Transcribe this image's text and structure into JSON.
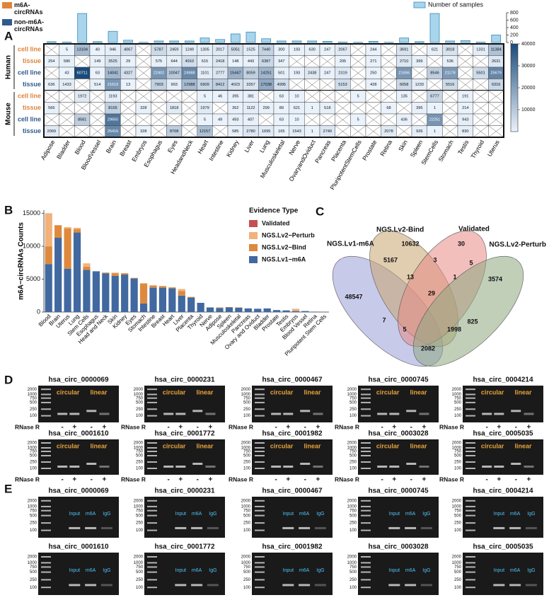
{
  "panel_labels": [
    "A",
    "B",
    "C",
    "D",
    "E"
  ],
  "chart_data": [
    {
      "type": "heatmap",
      "categories": [
        "Adipose",
        "Bladder",
        "Blood",
        "BloodVessel",
        "Brain",
        "Breast",
        "Embryos",
        "Esophagus",
        "Eyes",
        "HeadandNeck",
        "Heart",
        "Intestine",
        "Kidney",
        "Liver",
        "Lung",
        "Musculoskeletal",
        "Nerve",
        "OvaryandOviduct",
        "Pancreas",
        "Placenta",
        "PluripotentStemCells",
        "Prostate",
        "Retina",
        "Skin",
        "Spleen",
        "StemCells",
        "Stomach",
        "Testis",
        "Thyroid",
        "Uterus"
      ],
      "series": [
        {
          "name": "m6A-circRNAs",
          "color": "#e0843a"
        },
        {
          "name": "non-m6A-circRNAs",
          "color": "#2f5b8c"
        }
      ],
      "groups": [
        {
          "name": "Human",
          "rows": [
            {
              "label": "cell line",
              "values": [
                null,
                5,
                13104,
                40,
                946,
                4067,
                null,
                5787,
                2459,
                1249,
                1305,
                2017,
                5051,
                1525,
                7440,
                300,
                193,
                630,
                247,
                2067,
                null,
                244,
                null,
                3691,
                null,
                621,
                3918,
                null,
                1331,
                11384
              ]
            },
            {
              "label": "tissue",
              "values": [
                254,
                580,
                null,
                149,
                3525,
                29,
                null,
                575,
                644,
                4910,
                615,
                2418,
                148,
                443,
                6387,
                347,
                null,
                null,
                null,
                205,
                null,
                271,
                null,
                2710,
                399,
                null,
                536,
                null,
                null,
                2631
              ]
            },
            {
              "label": "cell line",
              "values": [
                null,
                43,
                60711,
                63,
                14041,
                4327,
                null,
                22402,
                10047,
                24988,
                1101,
                2777,
                15447,
                8059,
                14251,
                501,
                193,
                2438,
                247,
                2319,
                null,
                250,
                null,
                21656,
                null,
                8546,
                21178,
                null,
                5501,
                25679
              ]
            },
            {
              "label": "tissue",
              "values": [
                636,
                1433,
                null,
                514,
                21619,
                13,
                null,
                7903,
                993,
                12988,
                6909,
                8412,
                4023,
                3357,
                17038,
                4995,
                null,
                null,
                null,
                5153,
                null,
                428,
                null,
                6058,
                1233,
                null,
                5516,
                null,
                null,
                6316
              ]
            }
          ]
        },
        {
          "name": "Mouse",
          "rows": [
            {
              "label": "cell line",
              "values": [
                null,
                null,
                1972,
                null,
                1193,
                null,
                null,
                null,
                null,
                null,
                5,
                46,
                395,
                381,
                null,
                63,
                10,
                null,
                null,
                null,
                5,
                null,
                null,
                135,
                null,
                6777,
                null,
                191,
                null,
                null
              ]
            },
            {
              "label": "tissue",
              "values": [
                566,
                null,
                null,
                null,
                8155,
                null,
                328,
                null,
                1818,
                null,
                1979,
                null,
                352,
                1122,
                299,
                89,
                621,
                1,
                518,
                null,
                null,
                null,
                68,
                null,
                395,
                1,
                null,
                214,
                null,
                null
              ]
            },
            {
              "label": "cell line",
              "values": [
                null,
                null,
                8581,
                null,
                29650,
                null,
                null,
                null,
                null,
                null,
                5,
                49,
                493,
                407,
                null,
                63,
                10,
                null,
                null,
                null,
                5,
                null,
                null,
                436,
                null,
                22251,
                null,
                943,
                null,
                null
              ]
            },
            {
              "label": "tissue",
              "values": [
                2069,
                null,
                null,
                null,
                25416,
                null,
                328,
                null,
                8708,
                null,
                12157,
                null,
                585,
                2780,
                1695,
                165,
                1543,
                1,
                2749,
                null,
                null,
                null,
                2078,
                null,
                926,
                1,
                null,
                830,
                null,
                null
              ]
            }
          ]
        }
      ],
      "clim": [
        0,
        40000
      ],
      "cticks": [
        10000,
        20000,
        30000,
        40000
      ],
      "samples": {
        "name": "Number of samples",
        "color": "#a8d4ec",
        "values": [
          20,
          10,
          780,
          20,
          300,
          60,
          5,
          40,
          40,
          40,
          120,
          80,
          230,
          280,
          100,
          40,
          40,
          40,
          30,
          10,
          5,
          30,
          5,
          120,
          20,
          780,
          40,
          50,
          10,
          200
        ],
        "ylim": [
          0,
          800
        ],
        "yticks": [
          0,
          200,
          400,
          600,
          800
        ]
      }
    },
    {
      "type": "bar",
      "stacked": true,
      "ylabel": "m6A−circRNAs Counts",
      "legend_title": "Evidence Type",
      "categories": [
        "Blood",
        "Brain",
        "Uterus",
        "Lung",
        "Stem Cells",
        "Esophagus",
        "Head and Neck",
        "Skin",
        "Kidney",
        "Eyes",
        "Stomach",
        "Intestine",
        "Breast",
        "Heart",
        "Liver",
        "Placenta",
        "Thyroid",
        "Nerve",
        "Adipose",
        "Spleen",
        "Musculoskeletal",
        "Pancreas",
        "Ovary and Oviduct",
        "Bladder",
        "Prostate",
        "Testis",
        "Embryos",
        "Blood Vessel",
        "Retina",
        "Pluripotent Stem Cells"
      ],
      "series": [
        {
          "name": "Validated",
          "color": "#c44e52",
          "values": [
            20,
            10,
            10,
            10,
            5,
            0,
            0,
            0,
            0,
            0,
            0,
            0,
            0,
            0,
            0,
            0,
            0,
            0,
            0,
            0,
            0,
            0,
            0,
            0,
            0,
            0,
            0,
            0,
            0,
            0
          ]
        },
        {
          "name": "NGS.Lv2−Perturb",
          "color": "#f2b27a",
          "values": [
            5000,
            0,
            200,
            200,
            500,
            0,
            0,
            100,
            0,
            0,
            100,
            100,
            0,
            0,
            300,
            0,
            0,
            0,
            0,
            0,
            0,
            0,
            0,
            0,
            0,
            0,
            350,
            0,
            0,
            0
          ]
        },
        {
          "name": "NGS.Lv2−Bind",
          "color": "#dd8a3e",
          "values": [
            2700,
            1900,
            6100,
            500,
            500,
            0,
            100,
            400,
            200,
            100,
            3000,
            300,
            250,
            150,
            700,
            100,
            0,
            0,
            100,
            50,
            50,
            0,
            0,
            0,
            0,
            0,
            0,
            0,
            0,
            0
          ]
        },
        {
          "name": "NGS.Lv1−m6A",
          "color": "#4169a0",
          "values": [
            7300,
            11300,
            6600,
            12100,
            6400,
            6200,
            5900,
            5500,
            5700,
            5100,
            1300,
            3700,
            3700,
            3600,
            2500,
            2200,
            1400,
            700,
            600,
            700,
            650,
            550,
            500,
            550,
            300,
            250,
            150,
            150,
            60,
            20
          ]
        }
      ],
      "ylim": [
        0,
        15500
      ],
      "yticks": [
        0,
        5000,
        10000,
        15000
      ]
    },
    {
      "type": "venn",
      "sets": [
        {
          "name": "NGS.Lv1-m6A",
          "color": "#9b9ed8"
        },
        {
          "name": "NGS.Lv2-Bind",
          "color": "#c9a46e"
        },
        {
          "name": "Validated",
          "color": "#e88a85"
        },
        {
          "name": "NGS.Lv2-Perturb",
          "color": "#8ea77f"
        }
      ],
      "regions": [
        48547,
        10632,
        30,
        3574,
        5167,
        3,
        5,
        13,
        1,
        7,
        29,
        825,
        5,
        1998,
        2082
      ]
    }
  ],
  "gel_rnase": {
    "marker_sizes": [
      2000,
      1000,
      750,
      500,
      250,
      100
    ],
    "circular": "circular",
    "linear": "linear",
    "treatment": "RNase R",
    "signs": [
      "-",
      "+",
      "-",
      "+"
    ],
    "samples": [
      "hsa_circ_0000069",
      "hsa_circ_0000231",
      "hsa_circ_0000467",
      "hsa_circ_0000745",
      "hsa_circ_0004214",
      "hsa_circ_0001610",
      "hsa_circ_0001772",
      "hsa_circ_0001982",
      "hsa_circ_0003028",
      "hsa_circ_0005035"
    ]
  },
  "gel_merip": {
    "marker_sizes": [
      2000,
      1000,
      750,
      500,
      250,
      100
    ],
    "lanes": [
      "Input",
      "m6A",
      "IgG"
    ],
    "samples": [
      "hsa_circ_0000069",
      "hsa_circ_0000231",
      "hsa_circ_0000467",
      "hsa_circ_0000745",
      "hsa_circ_0004214",
      "hsa_circ_0001610",
      "hsa_circ_0001772",
      "hsa_circ_0001982",
      "hsa_circ_0003028",
      "hsa_circ_0005035"
    ]
  }
}
